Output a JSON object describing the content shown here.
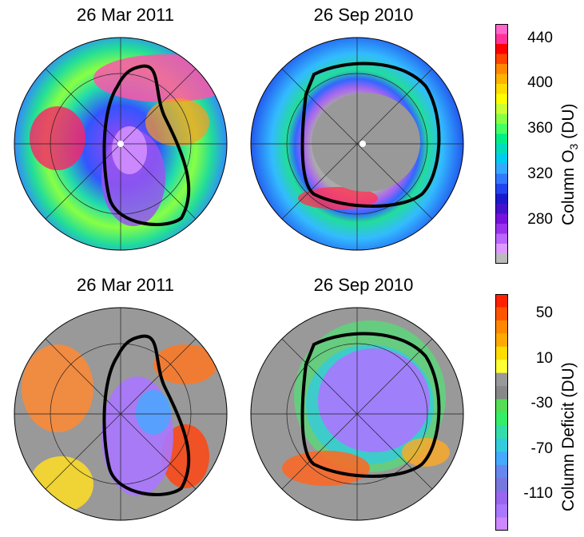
{
  "chart_data": [
    {
      "type": "heatmap",
      "title": "26 Mar 2011",
      "hemisphere": "north",
      "quantity": "column_o3",
      "vortex_edge": "bold black contour"
    },
    {
      "type": "heatmap",
      "title": "26 Sep 2010",
      "hemisphere": "south",
      "quantity": "column_o3",
      "vortex_edge": "bold black contour"
    },
    {
      "type": "heatmap",
      "title": "26 Mar 2011",
      "hemisphere": "north",
      "quantity": "column_deficit",
      "vortex_edge": "bold black contour"
    },
    {
      "type": "heatmap",
      "title": "26 Sep 2010",
      "hemisphere": "south",
      "quantity": "column_deficit",
      "vortex_edge": "bold black contour"
    }
  ],
  "colorbars": {
    "o3": {
      "label_main": "Column O",
      "label_sub": "3",
      "label_unit": " (DU)",
      "ticks": [
        "440",
        "400",
        "360",
        "320",
        "280"
      ],
      "colors": [
        "#ff66cc",
        "#ff3399",
        "#ff0000",
        "#ff4400",
        "#ff8800",
        "#ffb300",
        "#ffdd00",
        "#ffff00",
        "#ccff33",
        "#88ff44",
        "#44ff66",
        "#00ee88",
        "#00ddbb",
        "#00ccee",
        "#33aaff",
        "#3377ff",
        "#2244ee",
        "#1a1acc",
        "#4411cc",
        "#7711dd",
        "#9933ee",
        "#bb66ff",
        "#dd99ff",
        "#bbbbbb"
      ]
    },
    "deficit": {
      "label": "Column Deficit (DU)",
      "ticks": [
        "50",
        "10",
        "-30",
        "-70",
        "-110"
      ],
      "colors": [
        "#ff2200",
        "#ff5500",
        "#ff8800",
        "#ffaa00",
        "#ffdd00",
        "#ffff33",
        "#999999",
        "#888888",
        "#55dd55",
        "#33ee66",
        "#33ddaa",
        "#33ccdd",
        "#44aaff",
        "#6688ee",
        "#7777dd",
        "#9966ee",
        "#aa77ff",
        "#cc88ff"
      ]
    }
  }
}
